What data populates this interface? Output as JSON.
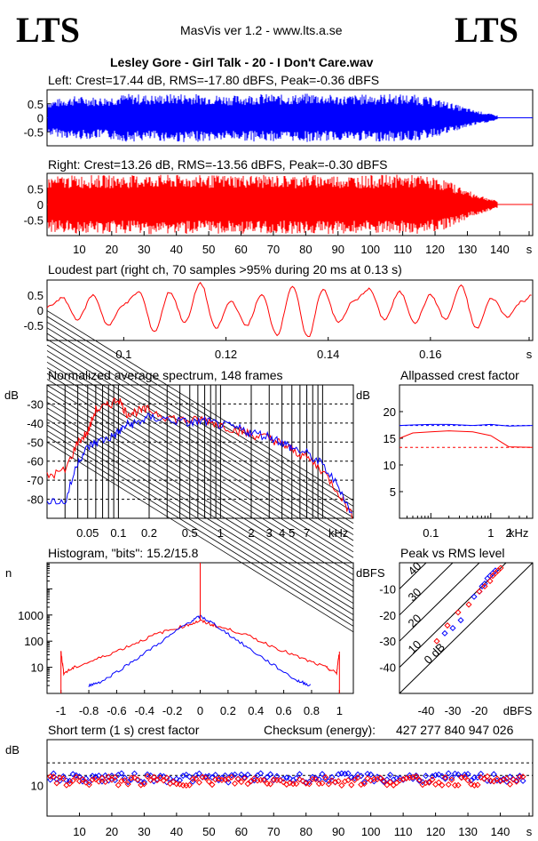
{
  "header": {
    "logo_left": "LTS",
    "logo_right": "LTS",
    "app_title": "MasVis ver 1.2 - www.lts.a.se",
    "file_name": "Lesley Gore - Girl Talk - 20 - I Don't Care.wav"
  },
  "colors": {
    "left": "#0000ff",
    "right": "#ff0000",
    "grid": "#000000"
  },
  "chart_data": [
    {
      "id": "left_waveform",
      "type": "line",
      "title": "Left: Crest=17.44 dB, RMS=-17.80 dBFS, Peak=-0.36 dBFS",
      "y_ticks": [
        "0.5",
        "0",
        "-0.5"
      ],
      "ylim": [
        -1,
        1
      ],
      "xlim": [
        0,
        148
      ],
      "series": [
        {
          "color": "#0000ff",
          "envelope": [
            0.62,
            0.78,
            0.74,
            0.86,
            0.82,
            0.88,
            0.84,
            0.8,
            0.86,
            0.82,
            0.88,
            0.8,
            0.84,
            0.86,
            0.82,
            0.6,
            0.3,
            0.08
          ]
        }
      ]
    },
    {
      "id": "right_waveform",
      "type": "line",
      "title": "Right: Crest=13.26 dB, RMS=-13.56 dBFS, Peak=-0.30 dBFS",
      "y_ticks": [
        "0.5",
        "0",
        "-0.5"
      ],
      "x_ticks": [
        "10",
        "20",
        "30",
        "40",
        "50",
        "60",
        "70",
        "80",
        "90",
        "100",
        "110",
        "120",
        "130",
        "140",
        "s"
      ],
      "ylim": [
        -1,
        1
      ],
      "xlim": [
        0,
        148
      ],
      "series": [
        {
          "color": "#ff0000",
          "envelope": [
            0.9,
            0.94,
            0.95,
            0.94,
            0.96,
            0.95,
            0.94,
            0.96,
            0.95,
            0.94,
            0.96,
            0.95,
            0.94,
            0.96,
            0.95,
            0.8,
            0.4,
            0.1
          ]
        }
      ]
    },
    {
      "id": "loudest_part",
      "type": "line",
      "title": "Loudest part (right ch, 70 samples >95% during 20 ms at 0.13 s)",
      "y_ticks": [
        "0.5",
        "0",
        "-0.5"
      ],
      "x_ticks": [
        "0.1",
        "0.12",
        "0.14",
        "0.16",
        "s"
      ],
      "xlim": [
        0.085,
        0.18
      ],
      "ylim": [
        -1,
        1
      ],
      "series": [
        {
          "color": "#ff0000",
          "x": [
            0.085,
            0.088,
            0.091,
            0.094,
            0.097,
            0.1,
            0.103,
            0.106,
            0.109,
            0.112,
            0.115,
            0.118,
            0.121,
            0.124,
            0.127,
            0.13,
            0.133,
            0.136,
            0.139,
            0.142,
            0.145,
            0.148,
            0.151,
            0.154,
            0.157,
            0.16,
            0.163,
            0.166,
            0.169,
            0.172,
            0.175,
            0.178,
            0.18
          ],
          "y": [
            0.1,
            0.4,
            -0.3,
            0.5,
            -0.5,
            0.2,
            0.6,
            -0.7,
            0.6,
            -0.4,
            0.9,
            -0.6,
            0.3,
            -0.5,
            0.5,
            -0.8,
            0.8,
            -0.9,
            0.7,
            -0.4,
            0.3,
            0.7,
            -0.3,
            0.6,
            -0.4,
            0.5,
            -0.3,
            0.8,
            -0.6,
            0.4,
            -0.2,
            0.3,
            0.5
          ]
        }
      ]
    },
    {
      "id": "spectrum",
      "type": "line",
      "title": "Normalized average spectrum, 148 frames",
      "ylabel": "dB",
      "xlabel": "kHz",
      "y_ticks": [
        "-30",
        "-40",
        "-50",
        "-60",
        "-70",
        "-80"
      ],
      "x_ticks": [
        "0.05",
        "0.1",
        "0.2",
        "0.5",
        "1",
        "2",
        "3",
        "4",
        "5",
        "7"
      ],
      "xlim": [
        0.02,
        20
      ],
      "ylim": [
        -90,
        -20
      ],
      "series": [
        {
          "color": "#ff0000",
          "x": [
            0.02,
            0.03,
            0.04,
            0.05,
            0.06,
            0.08,
            0.1,
            0.12,
            0.15,
            0.2,
            0.3,
            0.5,
            0.7,
            1,
            1.5,
            2,
            3,
            4,
            5,
            7,
            10,
            15,
            20
          ],
          "y": [
            -68,
            -65,
            -50,
            -45,
            -33,
            -31,
            -27,
            -35,
            -34,
            -33,
            -37,
            -39,
            -38,
            -41,
            -44,
            -46,
            -48,
            -51,
            -54,
            -58,
            -65,
            -78,
            -90
          ]
        },
        {
          "color": "#0000ff",
          "x": [
            0.02,
            0.03,
            0.04,
            0.05,
            0.06,
            0.08,
            0.1,
            0.12,
            0.15,
            0.2,
            0.3,
            0.5,
            0.7,
            1,
            1.5,
            2,
            3,
            4,
            5,
            7,
            10,
            15,
            20
          ],
          "y": [
            -80,
            -82,
            -60,
            -53,
            -50,
            -48,
            -45,
            -41,
            -40,
            -37,
            -38,
            -40,
            -39,
            -41,
            -43,
            -45,
            -47,
            -50,
            -53,
            -56,
            -62,
            -75,
            -90
          ]
        }
      ]
    },
    {
      "id": "allpassed_crest",
      "type": "line",
      "title": "Allpassed crest factor",
      "ylabel": "dB",
      "xlabel": "kHz",
      "y_ticks": [
        "20",
        "15",
        "10",
        "5"
      ],
      "x_ticks": [
        "0.1",
        "1",
        "2"
      ],
      "xlim": [
        0.03,
        5
      ],
      "ylim": [
        0,
        25
      ],
      "reference_lines": [
        17.4,
        13.3
      ],
      "series": [
        {
          "color": "#0000ff",
          "x": [
            0.03,
            0.05,
            0.1,
            0.2,
            0.5,
            1,
            2,
            5
          ],
          "y": [
            17.4,
            17.5,
            17.6,
            17.6,
            17.4,
            17.6,
            17.3,
            17.4
          ]
        },
        {
          "color": "#ff0000",
          "x": [
            0.03,
            0.05,
            0.1,
            0.2,
            0.5,
            1,
            2,
            5
          ],
          "y": [
            15.0,
            16.0,
            16.2,
            16.4,
            16.2,
            15.5,
            13.4,
            13.3
          ]
        }
      ]
    },
    {
      "id": "histogram",
      "type": "line",
      "title": "Histogram, \"bits\": 15.2/15.8",
      "ylabel": "n",
      "y_ticks": [
        "1000",
        "100",
        "10"
      ],
      "x_ticks": [
        "-1",
        "-0.8",
        "-0.6",
        "-0.4",
        "-0.2",
        "0",
        "0.2",
        "0.4",
        "0.6",
        "0.8",
        "1"
      ],
      "xlim": [
        -1.1,
        1.1
      ],
      "ylim_log": [
        1,
        100000
      ],
      "series": [
        {
          "color": "#ff0000",
          "x": [
            -1,
            -0.98,
            -0.9,
            -0.7,
            -0.5,
            -0.3,
            -0.1,
            0,
            0.1,
            0.3,
            0.5,
            0.7,
            0.9,
            0.98,
            1
          ],
          "y": [
            40,
            6,
            10,
            25,
            70,
            200,
            400,
            600,
            400,
            200,
            70,
            25,
            10,
            6,
            40
          ]
        },
        {
          "color": "#0000ff",
          "x": [
            -0.8,
            -0.7,
            -0.5,
            -0.3,
            -0.1,
            0,
            0.1,
            0.3,
            0.5,
            0.7,
            0.8
          ],
          "y": [
            2,
            3,
            15,
            80,
            450,
            900,
            450,
            80,
            15,
            3,
            2
          ]
        }
      ]
    },
    {
      "id": "peak_vs_rms",
      "type": "scatter",
      "title": "Peak vs RMS level",
      "ylabel": "dBFS",
      "xlabel": "dBFS",
      "y_ticks": [
        "-10",
        "-20",
        "-30",
        "-40"
      ],
      "x_ticks": [
        "-40",
        "-30",
        "-20"
      ],
      "crest_labels": [
        "40",
        "30",
        "20",
        "10",
        "0 dB"
      ],
      "xlim": [
        -50,
        0
      ],
      "ylim": [
        -50,
        0
      ],
      "series": [
        {
          "color": "#0000ff",
          "x": [
            -33,
            -30,
            -27,
            -22,
            -20,
            -19,
            -18,
            -17,
            -16,
            -15,
            -14
          ],
          "y": [
            -27,
            -25,
            -22,
            -13,
            -11,
            -9,
            -8,
            -6,
            -5,
            -4,
            -3
          ]
        },
        {
          "color": "#ff0000",
          "x": [
            -36,
            -32,
            -28,
            -24,
            -20,
            -18,
            -16,
            -15,
            -14,
            -13,
            -12
          ],
          "y": [
            -30,
            -24,
            -19,
            -16,
            -11,
            -9,
            -7,
            -5,
            -4,
            -3,
            -2
          ]
        }
      ]
    },
    {
      "id": "short_term_crest",
      "type": "scatter",
      "title": "Short term (1 s) crest factor",
      "ylabel": "dB",
      "y_ticks": [
        "10"
      ],
      "x_ticks": [
        "10",
        "20",
        "30",
        "40",
        "50",
        "60",
        "70",
        "80",
        "90",
        "100",
        "110",
        "120",
        "130",
        "140",
        "s"
      ],
      "xlim": [
        0,
        150
      ],
      "ylim": [
        0,
        25
      ],
      "reference_lines": [
        17.4,
        13.3
      ],
      "series": [
        {
          "color": "#0000ff",
          "baseline": 12.5
        },
        {
          "color": "#ff0000",
          "baseline": 11.5
        }
      ]
    }
  ],
  "checksum": {
    "label": "Checksum (energy):",
    "value": "427 277 840 947 026"
  }
}
